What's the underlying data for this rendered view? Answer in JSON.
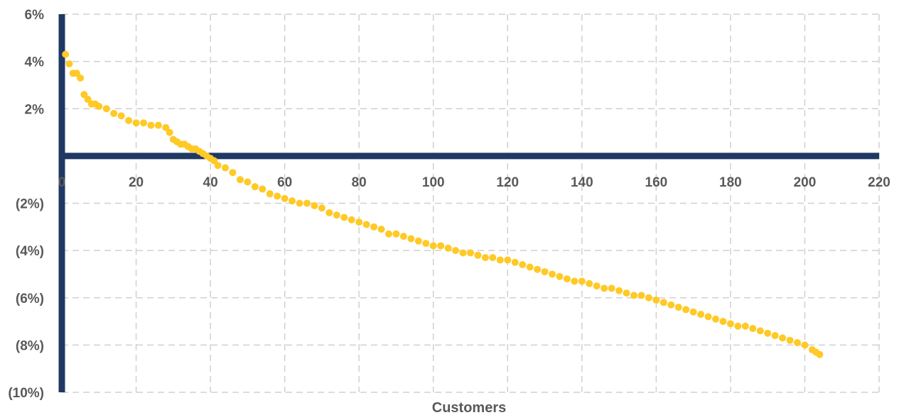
{
  "chart_data": {
    "type": "scatter",
    "title": "",
    "xlabel": "Customers",
    "ylabel": "",
    "xlim": [
      0,
      220
    ],
    "ylim": [
      -10,
      6
    ],
    "x_ticks": [
      0,
      20,
      40,
      60,
      80,
      100,
      120,
      140,
      160,
      180,
      200,
      220
    ],
    "x_tick_labels": [
      "0",
      "20",
      "40",
      "60",
      "80",
      "100",
      "120",
      "140",
      "160",
      "180",
      "200",
      "220"
    ],
    "y_ticks": [
      6,
      4,
      2,
      -2,
      -4,
      -6,
      -8,
      -10
    ],
    "y_tick_labels": [
      "6%",
      "4%",
      "2%",
      "(2%)",
      "(4%)",
      "(6%)",
      "(8%)",
      "(10%)"
    ],
    "grid": true,
    "legend": "none",
    "colors": {
      "points": "#FFC926",
      "axes": "#1F3864",
      "grid": "#D0D0D0",
      "text": "#595959"
    },
    "series": [
      {
        "x": [
          1,
          2,
          3,
          4,
          5,
          6,
          7,
          8,
          9,
          10,
          12,
          14,
          16,
          18,
          20,
          22,
          24,
          26,
          28,
          29,
          30,
          31,
          32,
          33,
          34,
          35,
          36,
          37,
          38,
          39,
          40,
          41,
          42,
          44,
          46,
          48,
          50,
          52,
          54,
          56,
          58,
          60,
          62,
          64,
          66,
          68,
          70,
          72,
          74,
          76,
          78,
          80,
          82,
          84,
          86,
          88,
          90,
          92,
          94,
          96,
          98,
          100,
          102,
          104,
          106,
          108,
          110,
          112,
          114,
          116,
          118,
          120,
          122,
          124,
          126,
          128,
          130,
          132,
          134,
          136,
          138,
          140,
          142,
          144,
          146,
          148,
          150,
          152,
          154,
          156,
          158,
          160,
          162,
          164,
          166,
          168,
          170,
          172,
          174,
          176,
          178,
          180,
          182,
          184,
          186,
          188,
          190,
          192,
          194,
          196,
          198,
          200,
          202,
          203,
          204
        ],
        "y": [
          4.3,
          3.9,
          3.5,
          3.5,
          3.3,
          2.6,
          2.4,
          2.2,
          2.2,
          2.1,
          2.0,
          1.8,
          1.7,
          1.5,
          1.4,
          1.4,
          1.3,
          1.3,
          1.2,
          1.0,
          0.7,
          0.6,
          0.5,
          0.5,
          0.4,
          0.3,
          0.3,
          0.2,
          0.1,
          0.0,
          -0.1,
          -0.2,
          -0.4,
          -0.5,
          -0.7,
          -1.0,
          -1.1,
          -1.3,
          -1.4,
          -1.6,
          -1.7,
          -1.8,
          -1.9,
          -2.0,
          -2.0,
          -2.1,
          -2.2,
          -2.4,
          -2.5,
          -2.6,
          -2.7,
          -2.8,
          -2.9,
          -3.0,
          -3.1,
          -3.3,
          -3.3,
          -3.4,
          -3.5,
          -3.6,
          -3.7,
          -3.8,
          -3.8,
          -3.9,
          -4.0,
          -4.1,
          -4.1,
          -4.2,
          -4.3,
          -4.3,
          -4.4,
          -4.4,
          -4.5,
          -4.6,
          -4.7,
          -4.8,
          -4.9,
          -5.0,
          -5.1,
          -5.2,
          -5.3,
          -5.3,
          -5.4,
          -5.5,
          -5.6,
          -5.6,
          -5.7,
          -5.8,
          -5.9,
          -5.9,
          -6.0,
          -6.1,
          -6.2,
          -6.3,
          -6.4,
          -6.5,
          -6.6,
          -6.7,
          -6.8,
          -6.9,
          -7.0,
          -7.1,
          -7.2,
          -7.2,
          -7.3,
          -7.4,
          -7.5,
          -7.6,
          -7.7,
          -7.8,
          -7.9,
          -8.0,
          -8.2,
          -8.3,
          -8.4
        ]
      }
    ]
  }
}
